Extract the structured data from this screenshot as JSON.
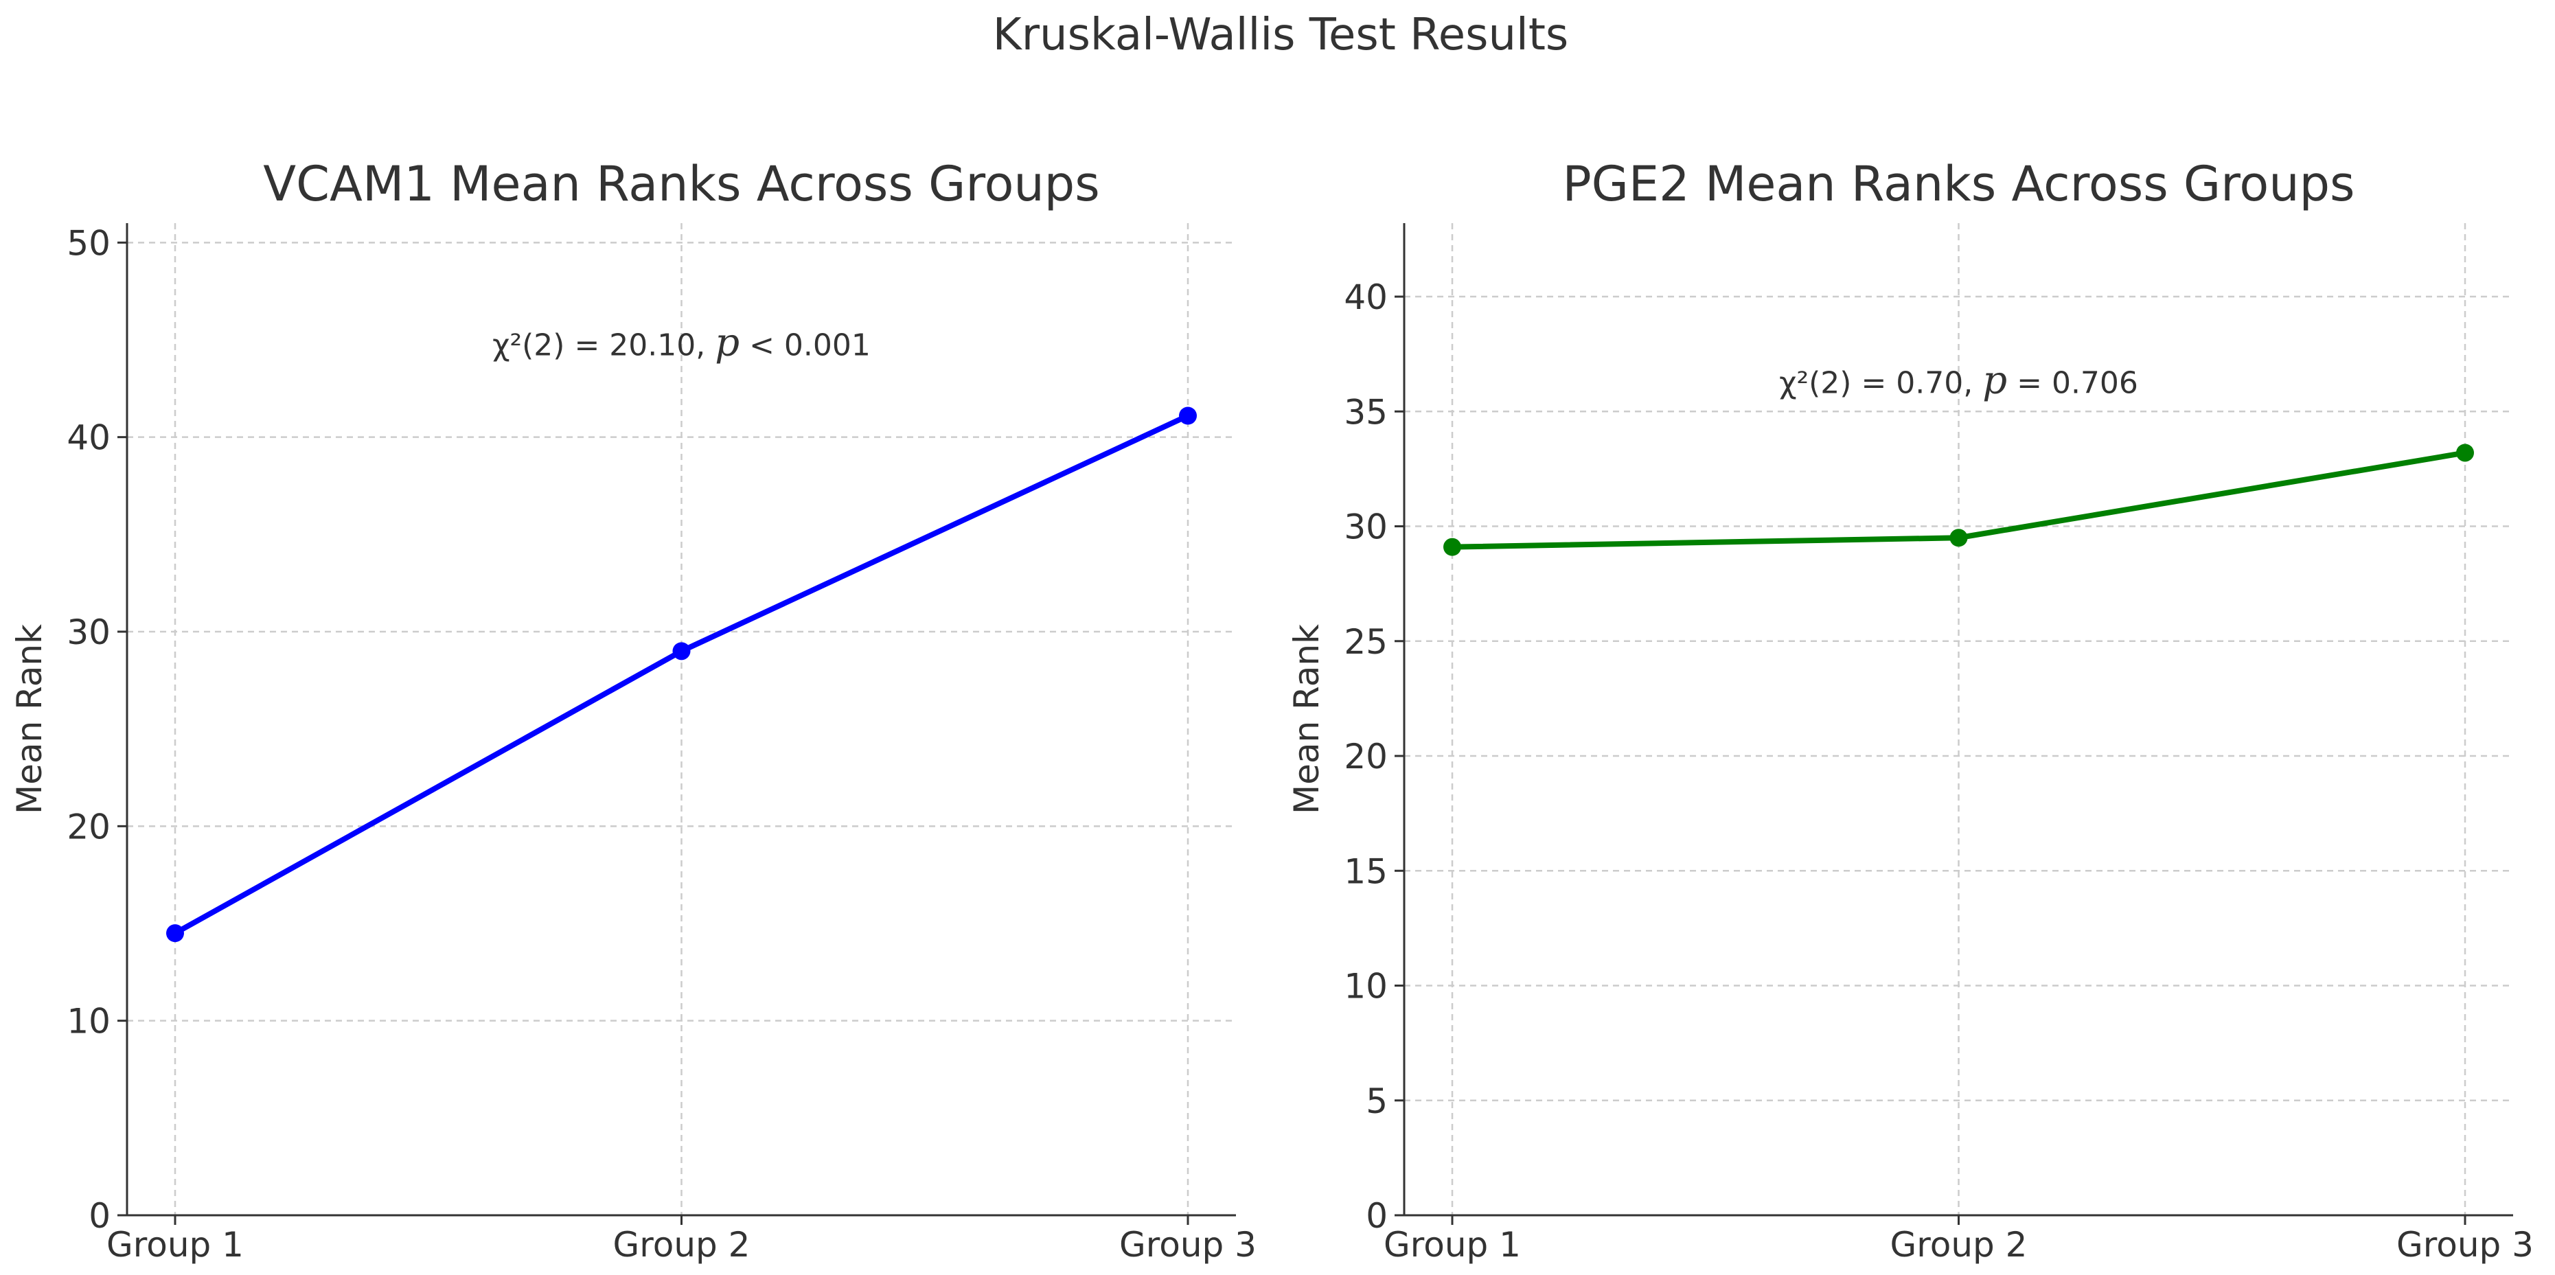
{
  "figure": {
    "title": "Kruskal-Wallis Test Results"
  },
  "chart_data": [
    {
      "type": "line",
      "title": "VCAM1 Mean Ranks Across Groups",
      "xlabel": "",
      "ylabel": "Mean Rank",
      "categories": [
        "Group 1",
        "Group 2",
        "Group 3"
      ],
      "series": [
        {
          "values": [
            14.5,
            29.0,
            41.1
          ],
          "color": "#0000ff"
        }
      ],
      "ylim": [
        0,
        51
      ],
      "yticks": [
        0,
        10,
        20,
        30,
        40,
        50
      ],
      "grid": true,
      "annotation": {
        "stat": "χ²(2) = 20.10,",
        "p_symbol": "p",
        "p_text": "< 0.001",
        "anchor": [
          1.0,
          44.2
        ]
      }
    },
    {
      "type": "line",
      "title": "PGE2 Mean Ranks Across Groups",
      "xlabel": "",
      "ylabel": "Mean Rank",
      "categories": [
        "Group 1",
        "Group 2",
        "Group 3"
      ],
      "series": [
        {
          "values": [
            29.1,
            29.5,
            33.2
          ],
          "color": "#008000"
        }
      ],
      "ylim": [
        0,
        43.2
      ],
      "yticks": [
        0,
        5,
        10,
        15,
        20,
        25,
        30,
        35,
        40
      ],
      "grid": true,
      "annotation": {
        "stat": "χ²(2) = 0.70,",
        "p_symbol": "p",
        "p_text": "= 0.706",
        "anchor": [
          1.0,
          35.8
        ]
      }
    }
  ]
}
